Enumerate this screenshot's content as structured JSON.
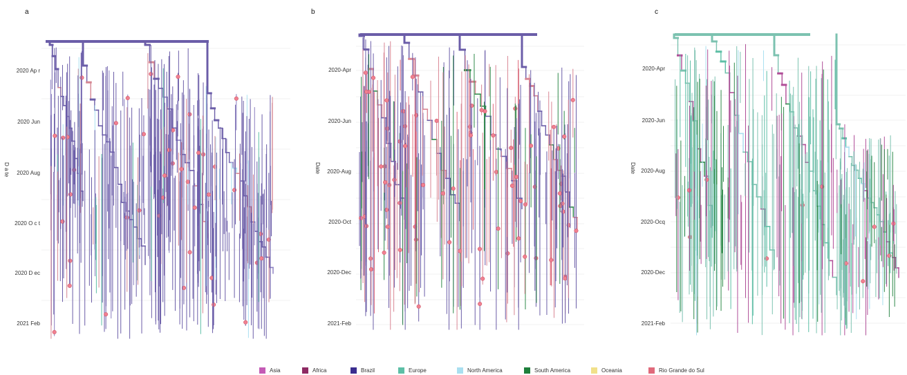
{
  "panels": [
    {
      "letter": "a",
      "ylabel": "D a te",
      "yticks": [
        "2020 Ap r",
        "2020 Jun",
        "2020 Aug",
        "2020 O c t",
        "2020 D ec",
        "2021 Feb"
      ]
    },
    {
      "letter": "b",
      "ylabel": "Date",
      "yticks": [
        "2020-Apr",
        "2020-Jun",
        "2020-Aug",
        "2020-Oct",
        "2020-Dec",
        "2021-Feb"
      ]
    },
    {
      "letter": "c",
      "ylabel": "Date",
      "yticks": [
        "2020-Apr",
        "2020-Jun",
        "2020-Aug",
        "2020-Ocq",
        "2020-Dec",
        "2021-Feb"
      ]
    }
  ],
  "legend": [
    {
      "label": "Asia",
      "color": "#c45bb5"
    },
    {
      "label": "Africa",
      "color": "#8e2a63"
    },
    {
      "label": "Brazil",
      "color": "#3a2d8f"
    },
    {
      "label": "Europe",
      "color": "#5dbfa6"
    },
    {
      "label": "North America",
      "color": "#a9dff0"
    },
    {
      "label": "South America",
      "color": "#1e7f3b"
    },
    {
      "label": "Oceania",
      "color": "#f1e08a"
    },
    {
      "label": "Rio Grande do Sul",
      "color": "#e06a7b"
    }
  ],
  "chart_data": [
    {
      "type": "tree",
      "panel": "a",
      "ylabel": "D a te",
      "yticks": [
        "2020 Ap r",
        "2020 Jun",
        "2020 Aug",
        "2020 O c t",
        "2020 D ec",
        "2021 Feb"
      ],
      "dominant_colors": [
        "#6b5da8",
        "#e06a7b"
      ]
    },
    {
      "type": "tree",
      "panel": "b",
      "ylabel": "Date",
      "yticks": [
        "2020-Apr",
        "2020-Jun",
        "2020-Aug",
        "2020-Oct",
        "2020-Dec",
        "2021-Feb"
      ],
      "dominant_colors": [
        "#6b5da8",
        "#d98694",
        "#2f8a4a",
        "#e06a7b"
      ]
    },
    {
      "type": "tree",
      "panel": "c",
      "ylabel": "Date",
      "yticks": [
        "2020-Apr",
        "2020-Jun",
        "2020-Aug",
        "2020-Ocq",
        "2020-Dec",
        "2021-Feb"
      ],
      "dominant_colors": [
        "#7cc2b0",
        "#b04e98",
        "#2f8a4a",
        "#e06a7b"
      ]
    }
  ]
}
